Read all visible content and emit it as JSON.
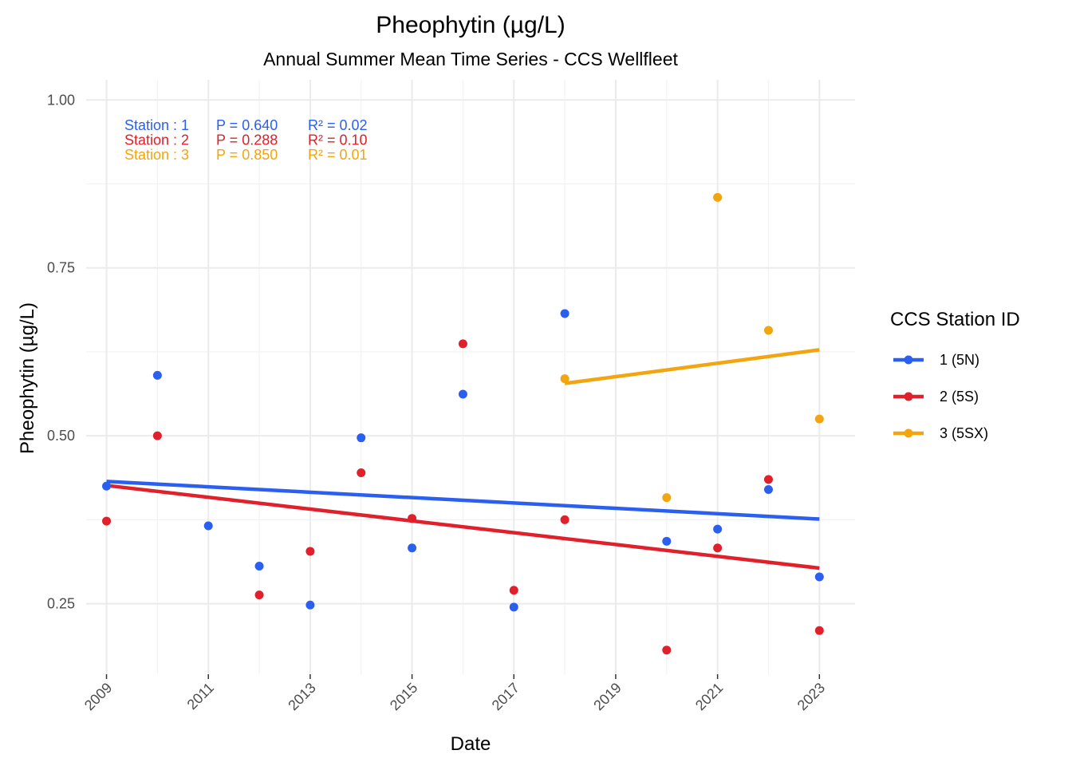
{
  "chart_data": {
    "type": "scatter",
    "title": "Pheophytin (µg/L)",
    "subtitle": "Annual Summer Mean Time Series - CCS Wellfleet",
    "xlabel": "Date",
    "ylabel": "Pheophytin (µg/L)",
    "xlim": [
      2008.6,
      2023.7
    ],
    "ylim": [
      0.145,
      1.03
    ],
    "x_ticks": [
      "2009",
      "2011",
      "2013",
      "2015",
      "2017",
      "2019",
      "2021",
      "2023"
    ],
    "y_ticks": [
      "0.25",
      "0.50",
      "0.75",
      "1.00"
    ],
    "grid": true,
    "legend": {
      "title": "CCS Station ID",
      "position": "right"
    },
    "series": [
      {
        "name": "1 (5N)",
        "color": "#2b5ff0",
        "points": [
          {
            "x": 2009,
            "y": 0.425
          },
          {
            "x": 2010,
            "y": 0.59
          },
          {
            "x": 2011,
            "y": 0.366
          },
          {
            "x": 2012,
            "y": 0.306
          },
          {
            "x": 2013,
            "y": 0.248
          },
          {
            "x": 2014,
            "y": 0.497
          },
          {
            "x": 2015,
            "y": 0.333
          },
          {
            "x": 2016,
            "y": 0.562
          },
          {
            "x": 2017,
            "y": 0.245
          },
          {
            "x": 2018,
            "y": 0.682
          },
          {
            "x": 2020,
            "y": 0.343
          },
          {
            "x": 2021,
            "y": 0.361
          },
          {
            "x": 2022,
            "y": 0.42
          },
          {
            "x": 2023,
            "y": 0.29
          }
        ],
        "trend": {
          "x": [
            2009,
            2023
          ],
          "y": [
            0.432,
            0.376
          ]
        },
        "stats": {
          "station": "Station : 1",
          "p": "P = 0.640",
          "r2": "R² = 0.02"
        }
      },
      {
        "name": "2 (5S)",
        "color": "#e0202a",
        "points": [
          {
            "x": 2009,
            "y": 0.373
          },
          {
            "x": 2010,
            "y": 0.5
          },
          {
            "x": 2012,
            "y": 0.263
          },
          {
            "x": 2013,
            "y": 0.328
          },
          {
            "x": 2014,
            "y": 0.445
          },
          {
            "x": 2015,
            "y": 0.377
          },
          {
            "x": 2016,
            "y": 0.637
          },
          {
            "x": 2017,
            "y": 0.27
          },
          {
            "x": 2018,
            "y": 0.375
          },
          {
            "x": 2020,
            "y": 0.181
          },
          {
            "x": 2021,
            "y": 0.333
          },
          {
            "x": 2022,
            "y": 0.435
          },
          {
            "x": 2023,
            "y": 0.21
          }
        ],
        "trend": {
          "x": [
            2009,
            2023
          ],
          "y": [
            0.426,
            0.303
          ]
        },
        "stats": {
          "station": "Station : 2",
          "p": "P = 0.288",
          "r2": "R² = 0.10"
        }
      },
      {
        "name": "3 (5SX)",
        "color": "#f2a50e",
        "points": [
          {
            "x": 2018,
            "y": 0.585
          },
          {
            "x": 2020,
            "y": 0.408
          },
          {
            "x": 2021,
            "y": 0.855
          },
          {
            "x": 2022,
            "y": 0.657
          },
          {
            "x": 2023,
            "y": 0.525
          }
        ],
        "trend": {
          "x": [
            2018,
            2023
          ],
          "y": [
            0.578,
            0.628
          ]
        },
        "stats": {
          "station": "Station : 3",
          "p": "P = 0.850",
          "r2": "R² = 0.01"
        }
      }
    ]
  }
}
